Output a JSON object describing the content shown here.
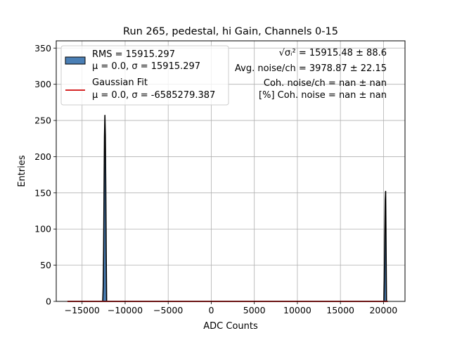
{
  "chart_data": {
    "type": "histogram",
    "title": "Run 265, pedestal, hi Gain, Channels 0-15",
    "xlabel": "ADC Counts",
    "ylabel": "Entries",
    "xlim": [
      -18000,
      22500
    ],
    "ylim": [
      0,
      360
    ],
    "xticks": [
      -15000,
      -10000,
      -5000,
      0,
      5000,
      10000,
      15000,
      20000
    ],
    "xtick_labels": [
      "−15000",
      "−10000",
      "−5000",
      "0",
      "5000",
      "10000",
      "15000",
      "20000"
    ],
    "yticks": [
      0,
      50,
      100,
      150,
      200,
      250,
      300,
      350
    ],
    "ytick_labels": [
      "0",
      "50",
      "100",
      "150",
      "200",
      "250",
      "300",
      "350"
    ],
    "grid": true,
    "legend_position": "upper-left",
    "colors": {
      "histogram_fill": "#4a7fb5",
      "histogram_edge": "#000000",
      "fit_line": "#d62728",
      "grid": "#b0b0b0"
    },
    "series": [
      {
        "name": "RMS = 15915.297",
        "name_line2": "μ = 0.0, σ = 15915.297",
        "type": "histogram",
        "peaks": [
          {
            "x": [
              -12600,
              -12550,
              -12500,
              -12450,
              -12400,
              -12350,
              -12300,
              -12250,
              -12200,
              -12150
            ],
            "y": [
              0,
              20,
              70,
              150,
              228,
              257,
              230,
              160,
              70,
              0
            ]
          },
          {
            "x": [
              20050,
              20100,
              20150,
              20200,
              20250,
              20300,
              20350
            ],
            "y": [
              0,
              30,
              90,
              140,
              152,
              80,
              0
            ]
          }
        ]
      },
      {
        "name": "Gaussian Fit",
        "name_line2": "μ = 0.0, σ = -6585279.387",
        "type": "line",
        "x": [
          -16700,
          20500
        ],
        "y": [
          0,
          0
        ]
      }
    ],
    "annotations": [
      "√σᵢ² = 15915.48 ± 88.6",
      "Avg. noise/ch = 3978.87 ± 22.15",
      "Coh. noise/ch = nan ± nan",
      "[%] Coh. noise = nan ± nan"
    ]
  }
}
